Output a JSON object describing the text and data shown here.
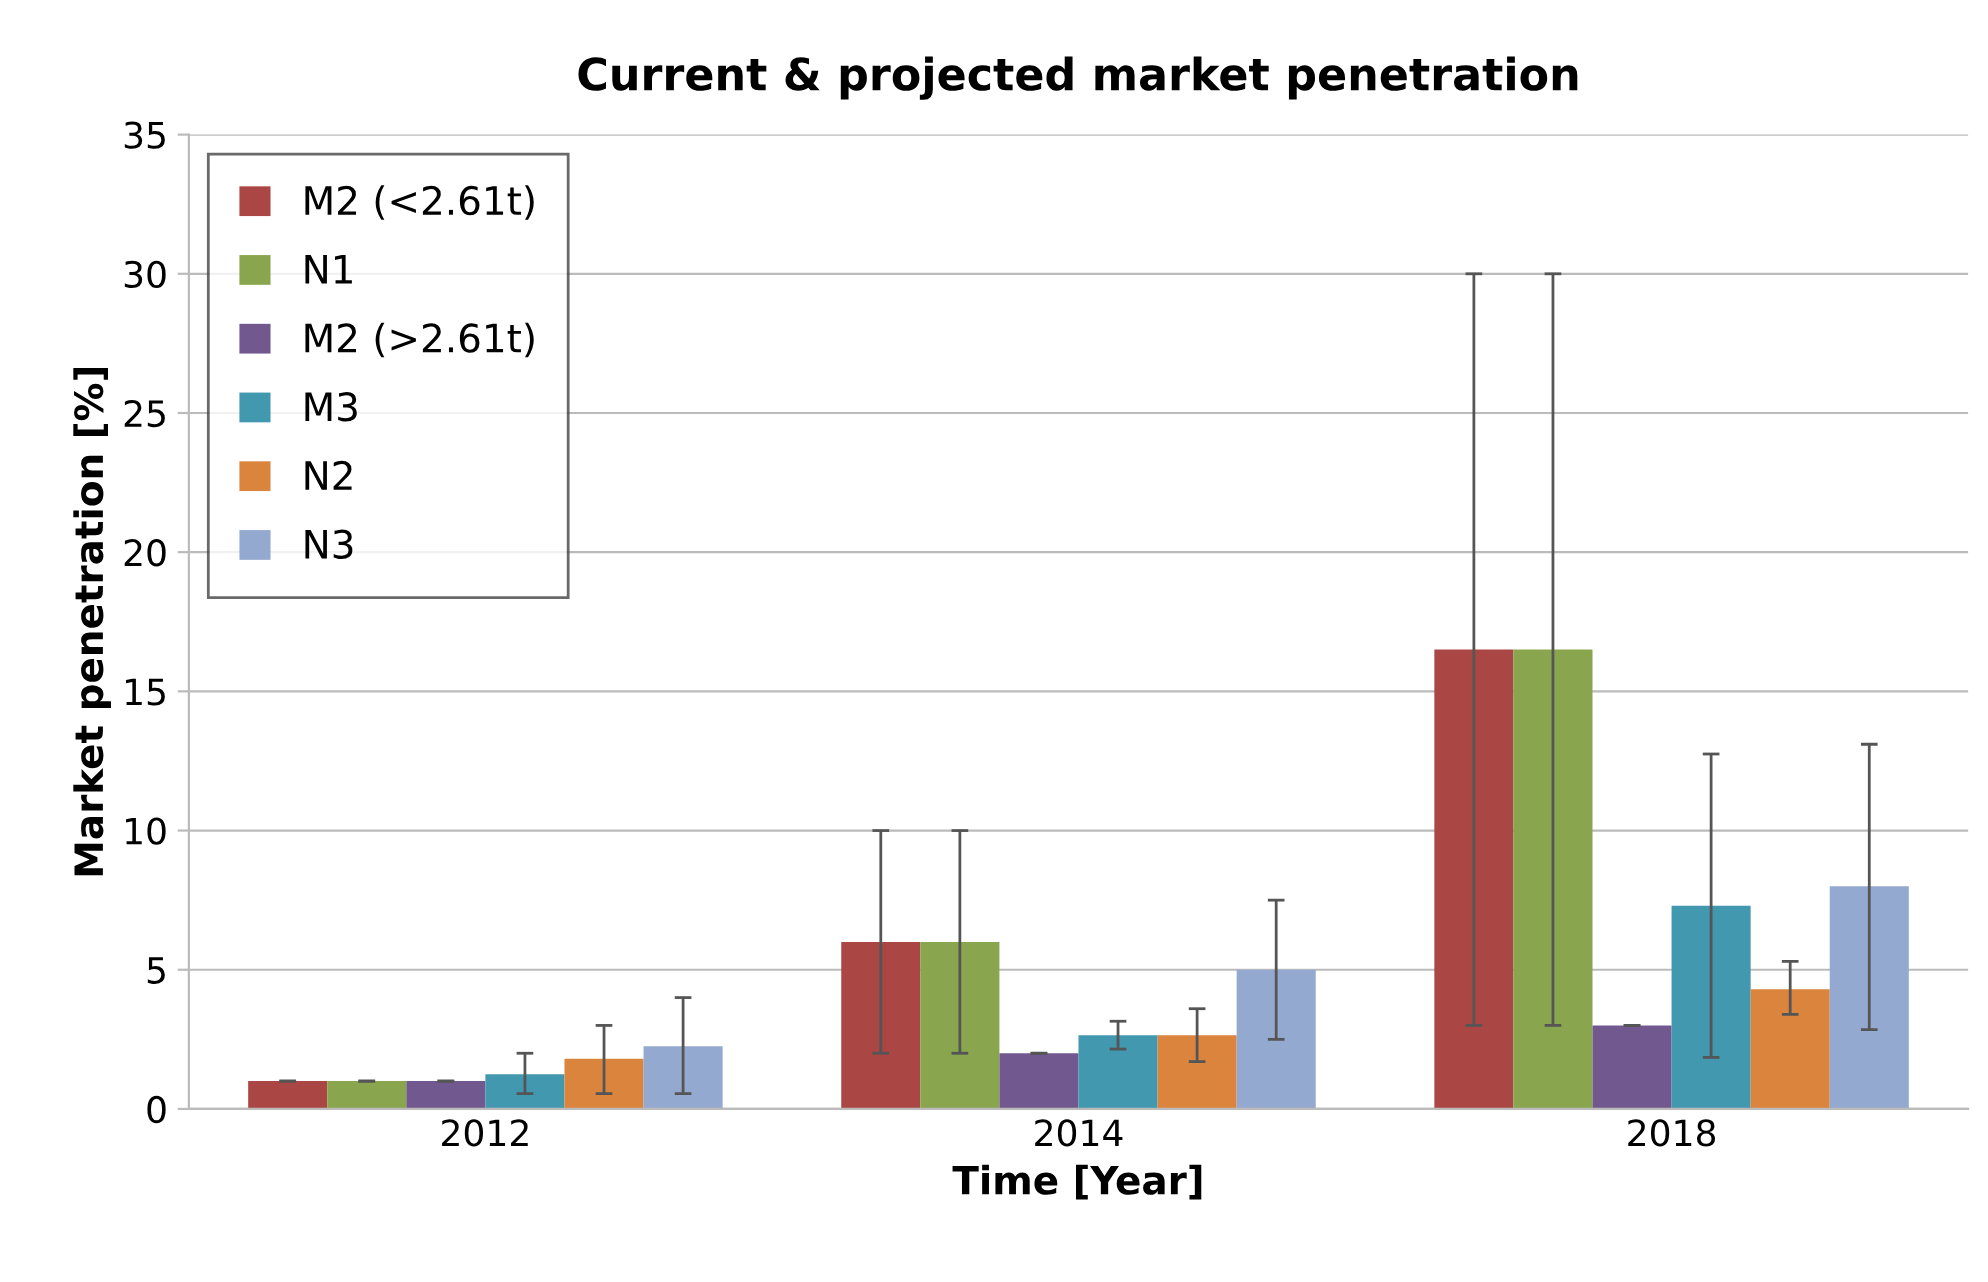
{
  "chart_data": {
    "type": "bar",
    "title": "Current & projected market penetration",
    "xlabel": "Time [Year]",
    "ylabel": "Market penetration [%]",
    "categories": [
      "2012",
      "2014",
      "2018"
    ],
    "series": [
      {
        "name": "M2 (<2.61t)",
        "color": "#aa4643",
        "values": [
          1.0,
          6.0,
          16.5
        ],
        "errors": [
          0,
          [
            2.0,
            10.0
          ],
          [
            3.0,
            30.0
          ]
        ]
      },
      {
        "name": "N1",
        "color": "#89a54e",
        "values": [
          1.0,
          6.0,
          16.5
        ],
        "errors": [
          0,
          [
            2.0,
            10.0
          ],
          [
            3.0,
            30.0
          ]
        ]
      },
      {
        "name": "M2 (>2.61t)",
        "color": "#71588f",
        "values": [
          1.0,
          2.0,
          3.0
        ],
        "errors": [
          0,
          0,
          0
        ]
      },
      {
        "name": "M3",
        "color": "#4198af",
        "values": [
          1.25,
          2.65,
          7.3
        ],
        "errors": [
          [
            0.55,
            2.0
          ],
          [
            2.15,
            3.15
          ],
          [
            1.85,
            12.75
          ]
        ]
      },
      {
        "name": "N2",
        "color": "#db843d",
        "values": [
          1.8,
          2.65,
          4.3
        ],
        "errors": [
          [
            0.55,
            3.0
          ],
          [
            1.7,
            3.6
          ],
          [
            3.4,
            5.3
          ]
        ]
      },
      {
        "name": "N3",
        "color": "#93a9cf",
        "values": [
          2.25,
          5.0,
          8.0
        ],
        "errors": [
          [
            0.55,
            4.0
          ],
          [
            2.5,
            7.5
          ],
          [
            2.85,
            13.1
          ]
        ]
      }
    ],
    "ylim": [
      0,
      35
    ],
    "yticks": [
      0,
      5,
      10,
      15,
      20,
      25,
      30,
      35
    ],
    "grid": "y",
    "legend": "top left"
  }
}
